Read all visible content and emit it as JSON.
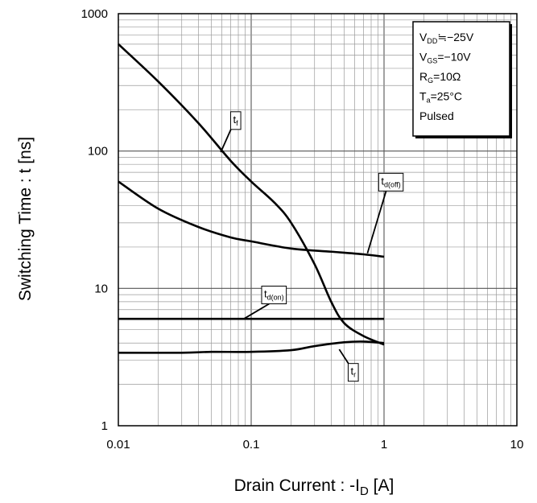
{
  "chart_data": {
    "type": "line",
    "xlabel": "Drain Current : -I",
    "xlabel_sub": "D",
    "xlabel_unit": " [A]",
    "ylabel": "Switching Time : t [ns]",
    "x_scale": "log",
    "y_scale": "log",
    "xlim": [
      0.01,
      10
    ],
    "ylim": [
      1,
      1000
    ],
    "x_ticks": [
      {
        "value": 0.01,
        "label": "0.01"
      },
      {
        "value": 0.1,
        "label": "0.1"
      },
      {
        "value": 1,
        "label": "1"
      },
      {
        "value": 10,
        "label": "10"
      }
    ],
    "y_ticks": [
      {
        "value": 1,
        "label": "1"
      },
      {
        "value": 10,
        "label": "10"
      },
      {
        "value": 100,
        "label": "100"
      },
      {
        "value": 1000,
        "label": "1000"
      }
    ],
    "grid": true,
    "series": [
      {
        "key": "tf",
        "label_main": "t",
        "label_sub": "f",
        "label_at": [
          0.073,
          160
        ],
        "leader_to": [
          0.059,
          98
        ],
        "points": [
          [
            0.01,
            600
          ],
          [
            0.02,
            320
          ],
          [
            0.04,
            160
          ],
          [
            0.07,
            85
          ],
          [
            0.1,
            60
          ],
          [
            0.15,
            42
          ],
          [
            0.2,
            30
          ],
          [
            0.3,
            15
          ],
          [
            0.4,
            8
          ],
          [
            0.5,
            5.6
          ],
          [
            0.7,
            4.5
          ],
          [
            1,
            3.9
          ]
        ]
      },
      {
        "key": "td_off",
        "label_main": "t",
        "label_sub": "d(off)",
        "label_at": [
          0.95,
          57
        ],
        "leader_to": [
          0.75,
          18
        ],
        "points": [
          [
            0.01,
            60
          ],
          [
            0.02,
            38
          ],
          [
            0.04,
            28
          ],
          [
            0.07,
            23.5
          ],
          [
            0.1,
            22
          ],
          [
            0.2,
            19.5
          ],
          [
            0.4,
            18.5
          ],
          [
            0.7,
            17.7
          ],
          [
            1,
            17
          ]
        ]
      },
      {
        "key": "td_on",
        "label_main": "t",
        "label_sub": "d(on)",
        "label_at": [
          0.125,
          8.6
        ],
        "leader_to": [
          0.088,
          6
        ],
        "points": [
          [
            0.01,
            6
          ],
          [
            1,
            6
          ]
        ]
      },
      {
        "key": "tr",
        "label_main": "t",
        "label_sub": "r",
        "label_at": [
          0.56,
          2.35
        ],
        "leader_to": [
          0.46,
          3.6
        ],
        "points": [
          [
            0.01,
            3.4
          ],
          [
            0.03,
            3.4
          ],
          [
            0.05,
            3.45
          ],
          [
            0.1,
            3.45
          ],
          [
            0.2,
            3.55
          ],
          [
            0.3,
            3.8
          ],
          [
            0.5,
            4.05
          ],
          [
            0.7,
            4.1
          ],
          [
            1,
            4
          ]
        ]
      }
    ],
    "annotation_box": {
      "position": "top-right",
      "lines": [
        {
          "main": "V",
          "sub": "DD",
          "rest": "≒−25V"
        },
        {
          "main": "V",
          "sub": "GS",
          "rest": "=−10V"
        },
        {
          "main": "R",
          "sub": "G",
          "rest": "=10Ω"
        },
        {
          "main": "T",
          "sub": "a",
          "rest": "=25°C"
        },
        {
          "main": "Pulsed",
          "sub": "",
          "rest": ""
        }
      ]
    },
    "line_color": "#000000",
    "grid_color": "#9a9a9a"
  }
}
